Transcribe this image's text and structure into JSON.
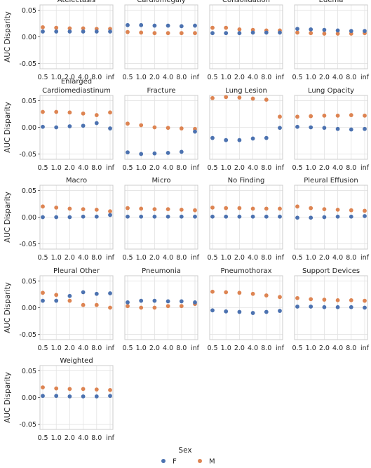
{
  "chart_data": {
    "type": "scatter",
    "x_tick_labels": [
      "0.5",
      "1.0",
      "2.0",
      "4.0",
      "8.0",
      "inf"
    ],
    "ylabel": "AUC Disparity",
    "ylim": [
      -0.06,
      0.06
    ],
    "yticks": [
      0.05,
      0.0,
      -0.05
    ],
    "ytick_labels": [
      "0.05",
      "0.00",
      "-0.05"
    ],
    "grid": true,
    "legend": {
      "title": "Sex",
      "placement": "bottom-center",
      "entries": [
        {
          "name": "F",
          "color": "#4c72b0"
        },
        {
          "name": "M",
          "color": "#dd8452"
        }
      ]
    },
    "colors": {
      "F": "#4c72b0",
      "M": "#dd8452"
    },
    "panels": [
      {
        "title": "Atelectasis",
        "F": [
          0.01,
          0.01,
          0.01,
          0.01,
          0.01,
          0.01
        ],
        "M": [
          0.018,
          0.017,
          0.016,
          0.016,
          0.015,
          0.015
        ]
      },
      {
        "title": "Cardiomegaly",
        "F": [
          0.022,
          0.022,
          0.021,
          0.021,
          0.02,
          0.021
        ],
        "M": [
          0.009,
          0.008,
          0.007,
          0.007,
          0.007,
          0.007
        ]
      },
      {
        "title": "Consolidation",
        "F": [
          0.007,
          0.007,
          0.007,
          0.008,
          0.008,
          0.008
        ],
        "M": [
          0.017,
          0.017,
          0.014,
          0.013,
          0.012,
          0.012
        ]
      },
      {
        "title": "Edema",
        "F": [
          0.015,
          0.014,
          0.013,
          0.012,
          0.011,
          0.011
        ],
        "M": [
          0.008,
          0.007,
          0.006,
          0.006,
          0.006,
          0.007
        ]
      },
      {
        "title": "Enlarged\nCardiomediastinum",
        "F": [
          0.001,
          0.0,
          0.002,
          0.003,
          0.008,
          -0.002
        ],
        "M": [
          0.029,
          0.029,
          0.028,
          0.026,
          0.023,
          0.028
        ]
      },
      {
        "title": "Fracture",
        "F": [
          -0.047,
          -0.05,
          -0.049,
          -0.048,
          -0.046,
          -0.008
        ],
        "M": [
          0.007,
          0.004,
          0.0,
          -0.001,
          -0.002,
          -0.003
        ]
      },
      {
        "title": "Lung Lesion",
        "F": [
          -0.02,
          -0.024,
          -0.024,
          -0.021,
          -0.02,
          -0.001
        ],
        "M": [
          0.055,
          0.057,
          0.056,
          0.054,
          0.052,
          0.02
        ]
      },
      {
        "title": "Lung Opacity",
        "F": [
          0.001,
          0.0,
          -0.001,
          -0.003,
          -0.004,
          -0.003
        ],
        "M": [
          0.02,
          0.021,
          0.022,
          0.022,
          0.023,
          0.022
        ]
      },
      {
        "title": "Macro",
        "F": [
          0.0,
          0.0,
          0.0,
          0.001,
          0.001,
          0.004
        ],
        "M": [
          0.02,
          0.018,
          0.016,
          0.015,
          0.014,
          0.011
        ]
      },
      {
        "title": "Micro",
        "F": [
          0.001,
          0.001,
          0.001,
          0.001,
          0.001,
          0.001
        ],
        "M": [
          0.017,
          0.016,
          0.015,
          0.015,
          0.014,
          0.013
        ]
      },
      {
        "title": "No Finding",
        "F": [
          0.001,
          0.001,
          0.001,
          0.001,
          0.001,
          0.001
        ],
        "M": [
          0.018,
          0.017,
          0.017,
          0.016,
          0.016,
          0.016
        ]
      },
      {
        "title": "Pleural Effusion",
        "F": [
          -0.001,
          -0.001,
          0.0,
          0.001,
          0.001,
          0.002
        ],
        "M": [
          0.02,
          0.017,
          0.015,
          0.014,
          0.013,
          0.012
        ]
      },
      {
        "title": "Pleural Other",
        "F": [
          0.013,
          0.013,
          0.022,
          0.029,
          0.026,
          0.027
        ],
        "M": [
          0.028,
          0.024,
          0.013,
          0.005,
          0.005,
          0.0
        ]
      },
      {
        "title": "Pneumonia",
        "F": [
          0.01,
          0.013,
          0.013,
          0.012,
          0.012,
          0.01
        ],
        "M": [
          0.003,
          0.0,
          0.0,
          0.003,
          0.003,
          0.007
        ]
      },
      {
        "title": "Pneumothorax",
        "F": [
          -0.005,
          -0.007,
          -0.008,
          -0.01,
          -0.008,
          -0.006
        ],
        "M": [
          0.03,
          0.029,
          0.028,
          0.026,
          0.023,
          0.02
        ]
      },
      {
        "title": "Support Devices",
        "F": [
          0.002,
          0.002,
          0.001,
          0.001,
          0.001,
          0.0
        ],
        "M": [
          0.018,
          0.016,
          0.015,
          0.014,
          0.014,
          0.013
        ]
      },
      {
        "title": "Weighted",
        "F": [
          0.003,
          0.003,
          0.002,
          0.002,
          0.002,
          0.003
        ],
        "M": [
          0.019,
          0.017,
          0.016,
          0.016,
          0.015,
          0.014
        ]
      }
    ]
  }
}
